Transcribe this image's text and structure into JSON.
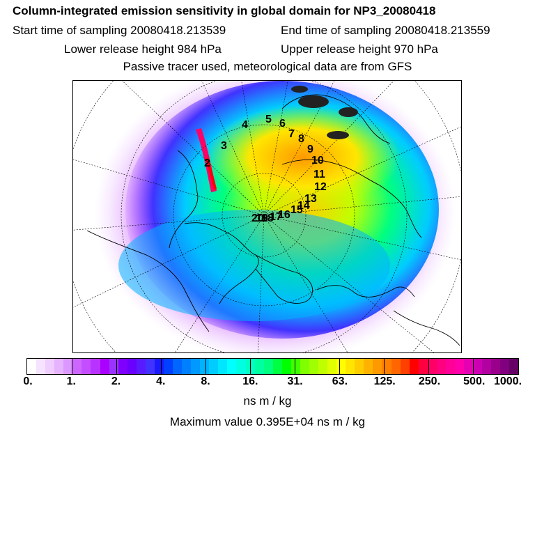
{
  "header": {
    "title": "Column-integrated emission sensitivity in global domain for NP3_20080418",
    "start_time": "Start time of sampling 20080418.213539",
    "end_time": "End time of sampling 20080418.213559",
    "lower_release": "Lower release height  984 hPa",
    "upper_release": "Upper release height  970 hPa",
    "tracer_note": "Passive tracer used, meteorological data are from GFS"
  },
  "map": {
    "projection": "north-polar-stereographic",
    "day_labels": [
      "2",
      "3",
      "4",
      "5",
      "6",
      "7",
      "8",
      "9",
      "10",
      "11",
      "12",
      "13",
      "14",
      "15",
      "16",
      "17",
      "18",
      "19",
      "20"
    ]
  },
  "colorbar": {
    "tick_labels": [
      "0.",
      "1.",
      "2.",
      "4.",
      "8.",
      "16.",
      "31.",
      "63.",
      "125.",
      "250.",
      "500.",
      "1000."
    ],
    "colors": [
      "#ffffff",
      "#f6e3ff",
      "#efcdff",
      "#e6b3ff",
      "#db99ff",
      "#cc66ff",
      "#c44dff",
      "#b833ff",
      "#aa00ff",
      "#9933ff",
      "#8000ff",
      "#6a00ff",
      "#5a1aff",
      "#4033ff",
      "#1a1aff",
      "#0040ff",
      "#0066ff",
      "#0080ff",
      "#0099ff",
      "#00b3ff",
      "#00ccff",
      "#00e6ff",
      "#00ffff",
      "#00ffe0",
      "#00ffc0",
      "#00ffa0",
      "#00ff80",
      "#00ff40",
      "#00ff00",
      "#40ff00",
      "#80ff00",
      "#a0ff00",
      "#c0ff00",
      "#e0ff00",
      "#ffff00",
      "#ffe600",
      "#ffcc00",
      "#ffb300",
      "#ff9900",
      "#ff8000",
      "#ff6600",
      "#ff4000",
      "#ff0000",
      "#ff0040",
      "#ff0066",
      "#ff0080",
      "#ff0099",
      "#ff00aa",
      "#e600b3",
      "#cc00b3",
      "#b300a0",
      "#99008c",
      "#800080",
      "#660066"
    ],
    "units": "ns m / kg",
    "max_value": "Maximum value  0.395E+04 ns m / kg"
  }
}
